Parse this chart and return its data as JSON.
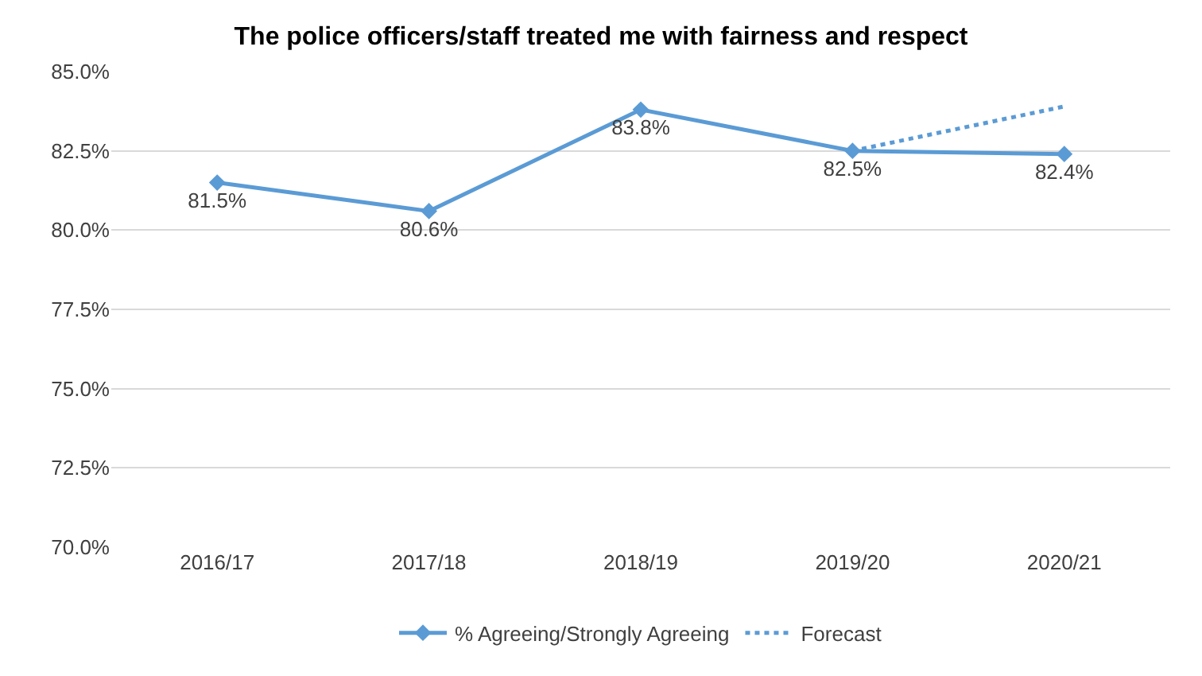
{
  "chart_data": {
    "type": "line",
    "title": "The police officers/staff treated me with fairness and respect",
    "categories": [
      "2016/17",
      "2017/18",
      "2018/19",
      "2019/20",
      "2020/21"
    ],
    "series": [
      {
        "name": "% Agreeing/Strongly Agreeing",
        "color": "#5b9bd5",
        "values": [
          81.5,
          80.6,
          83.8,
          82.5,
          82.4
        ],
        "value_labels": [
          "81.5%",
          "80.6%",
          "83.8%",
          "82.5%",
          "82.4%"
        ],
        "marker": "diamond",
        "line_style": "solid"
      },
      {
        "name": "Forecast",
        "color": "#5b9bd5",
        "values": [
          null,
          null,
          null,
          82.5,
          83.9
        ],
        "marker": "none",
        "line_style": "dotted"
      }
    ],
    "ylim": [
      70,
      85
    ],
    "yticks": [
      {
        "value": 70,
        "label": "70.0%"
      },
      {
        "value": 72.5,
        "label": "72.5%"
      },
      {
        "value": 75,
        "label": "75.0%"
      },
      {
        "value": 77.5,
        "label": "77.5%"
      },
      {
        "value": 80,
        "label": "80.0%"
      },
      {
        "value": 82.5,
        "label": "82.5%"
      },
      {
        "value": 85,
        "label": "85.0%"
      }
    ],
    "grid": "y",
    "legend": "bottom"
  }
}
